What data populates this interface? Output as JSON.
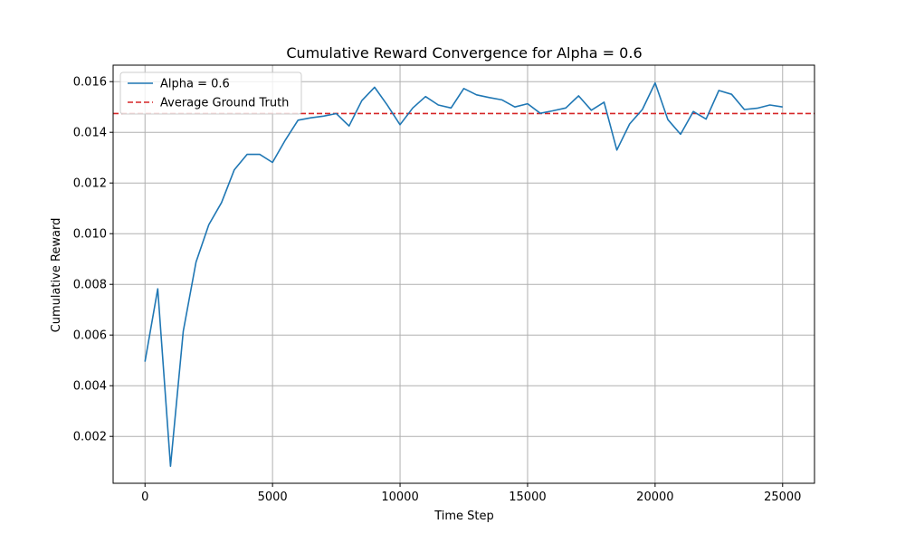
{
  "chart_data": {
    "type": "line",
    "title": "Cumulative Reward Convergence for Alpha = 0.6",
    "xlabel": "Time Step",
    "ylabel": "Cumulative Reward",
    "xlim": [
      -1250,
      26250
    ],
    "ylim": [
      0.00015,
      0.01665
    ],
    "x_ticks": [
      0,
      5000,
      10000,
      15000,
      20000,
      25000
    ],
    "x_tick_labels": [
      "0",
      "5000",
      "10000",
      "15000",
      "20000",
      "25000"
    ],
    "y_ticks": [
      0.002,
      0.004,
      0.006,
      0.008,
      0.01,
      0.012,
      0.014,
      0.016
    ],
    "y_tick_labels": [
      "0.002",
      "0.004",
      "0.006",
      "0.008",
      "0.010",
      "0.012",
      "0.014",
      "0.016"
    ],
    "grid": true,
    "legend_position": "top-left",
    "series": [
      {
        "name": "Alpha = 0.6",
        "color": "#1f77b4",
        "style": "solid",
        "x": [
          0,
          500,
          1000,
          1500,
          2000,
          2500,
          3000,
          3500,
          4000,
          4500,
          5000,
          5500,
          6000,
          6500,
          7000,
          7500,
          8000,
          8500,
          9000,
          9500,
          10000,
          10500,
          11000,
          11500,
          12000,
          12500,
          13000,
          13500,
          14000,
          14500,
          15000,
          15500,
          16000,
          16500,
          17000,
          17500,
          18000,
          18500,
          19000,
          19500,
          20000,
          20500,
          21000,
          21500,
          22000,
          22500,
          23000,
          23500,
          24000,
          24500,
          25000
        ],
        "y": [
          0.00495,
          0.00782,
          0.00082,
          0.00615,
          0.00888,
          0.01035,
          0.01123,
          0.01252,
          0.01313,
          0.01313,
          0.01281,
          0.01369,
          0.01448,
          0.01457,
          0.01464,
          0.01474,
          0.01425,
          0.01525,
          0.01578,
          0.01507,
          0.0143,
          0.01496,
          0.01541,
          0.01508,
          0.01496,
          0.01573,
          0.01548,
          0.01537,
          0.01528,
          0.015,
          0.01513,
          0.01475,
          0.01485,
          0.01496,
          0.01544,
          0.01487,
          0.01519,
          0.0133,
          0.01433,
          0.0149,
          0.01595,
          0.0145,
          0.01392,
          0.01482,
          0.01452,
          0.01565,
          0.0155,
          0.0149,
          0.01495,
          0.01508,
          0.015
        ]
      },
      {
        "name": "Average Ground Truth",
        "color": "#d62728",
        "style": "dashed",
        "hline": 0.01474
      }
    ]
  }
}
